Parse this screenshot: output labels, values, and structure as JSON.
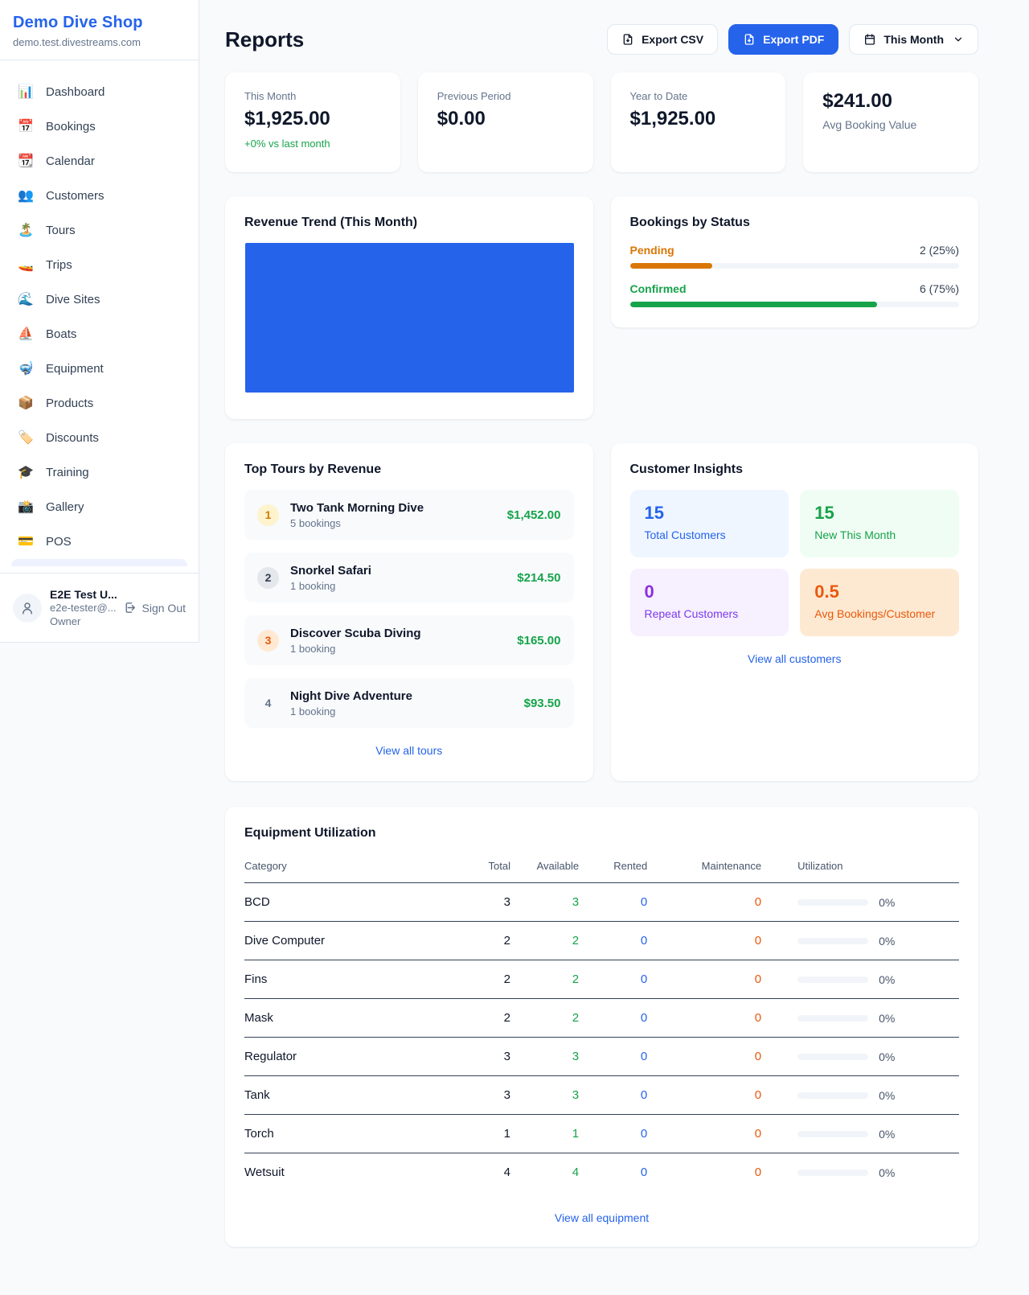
{
  "colors": {
    "brand": "#2563eb",
    "green": "#16a34a",
    "orange": "#d97706",
    "orange_deep": "#ea580c",
    "purple": "#9333ea",
    "page_bg": "#f8fafc"
  },
  "sidebar": {
    "shop_name": "Demo Dive Shop",
    "shop_domain": "demo.test.divestreams.com",
    "items": [
      {
        "icon": "📊",
        "label": "Dashboard"
      },
      {
        "icon": "📅",
        "label": "Bookings"
      },
      {
        "icon": "📆",
        "label": "Calendar"
      },
      {
        "icon": "👥",
        "label": "Customers"
      },
      {
        "icon": "🏝️",
        "label": "Tours"
      },
      {
        "icon": "🚤",
        "label": "Trips"
      },
      {
        "icon": "🌊",
        "label": "Dive Sites"
      },
      {
        "icon": "⛵",
        "label": "Boats"
      },
      {
        "icon": "🤿",
        "label": "Equipment"
      },
      {
        "icon": "📦",
        "label": "Products"
      },
      {
        "icon": "🏷️",
        "label": "Discounts"
      },
      {
        "icon": "🎓",
        "label": "Training"
      },
      {
        "icon": "📸",
        "label": "Gallery"
      },
      {
        "icon": "💳",
        "label": "POS"
      }
    ],
    "user": {
      "name": "E2E Test U...",
      "email": "e2e-tester@...",
      "role": "Owner",
      "sign_out_label": "Sign Out"
    }
  },
  "header": {
    "title": "Reports",
    "export_csv_label": "Export CSV",
    "export_pdf_label": "Export PDF",
    "period_label": "This Month"
  },
  "stats": [
    {
      "label": "This Month",
      "value": "$1,925.00",
      "delta": "+0% vs last month"
    },
    {
      "label": "Previous Period",
      "value": "$0.00"
    },
    {
      "label": "Year to Date",
      "value": "$1,925.00"
    },
    {
      "label": "Avg Booking Value",
      "value": "$241.00"
    }
  ],
  "revenue_trend": {
    "title": "Revenue Trend (This Month)"
  },
  "bookings_by_status": {
    "title": "Bookings by Status",
    "statuses": [
      {
        "label": "Pending",
        "count_text": "2 (25%)",
        "pct": 25
      },
      {
        "label": "Confirmed",
        "count_text": "6 (75%)",
        "pct": 75
      }
    ]
  },
  "top_tours": {
    "title": "Top Tours by Revenue",
    "link_label": "View all tours",
    "tours": [
      {
        "rank": "1",
        "name": "Two Tank Morning Dive",
        "bookings": "5 bookings",
        "revenue": "$1,452.00"
      },
      {
        "rank": "2",
        "name": "Snorkel Safari",
        "bookings": "1 booking",
        "revenue": "$214.50"
      },
      {
        "rank": "3",
        "name": "Discover Scuba Diving",
        "bookings": "1 booking",
        "revenue": "$165.00"
      },
      {
        "rank": "4",
        "name": "Night Dive Adventure",
        "bookings": "1 booking",
        "revenue": "$93.50"
      }
    ]
  },
  "customer_insights": {
    "title": "Customer Insights",
    "link_label": "View all customers",
    "tiles": [
      {
        "value": "15",
        "label": "Total Customers"
      },
      {
        "value": "15",
        "label": "New This Month"
      },
      {
        "value": "0",
        "label": "Repeat Customers"
      },
      {
        "value": "0.5",
        "label": "Avg Bookings/Customer"
      }
    ]
  },
  "equipment": {
    "title": "Equipment Utilization",
    "link_label": "View all equipment",
    "columns": [
      "Category",
      "Total",
      "Available",
      "Rented",
      "Maintenance",
      "Utilization"
    ],
    "rows": [
      {
        "category": "BCD",
        "total": "3",
        "available": "3",
        "rented": "0",
        "maintenance": "0",
        "utilization": "0%"
      },
      {
        "category": "Dive Computer",
        "total": "2",
        "available": "2",
        "rented": "0",
        "maintenance": "0",
        "utilization": "0%"
      },
      {
        "category": "Fins",
        "total": "2",
        "available": "2",
        "rented": "0",
        "maintenance": "0",
        "utilization": "0%"
      },
      {
        "category": "Mask",
        "total": "2",
        "available": "2",
        "rented": "0",
        "maintenance": "0",
        "utilization": "0%"
      },
      {
        "category": "Regulator",
        "total": "3",
        "available": "3",
        "rented": "0",
        "maintenance": "0",
        "utilization": "0%"
      },
      {
        "category": "Tank",
        "total": "3",
        "available": "3",
        "rented": "0",
        "maintenance": "0",
        "utilization": "0%"
      },
      {
        "category": "Torch",
        "total": "1",
        "available": "1",
        "rented": "0",
        "maintenance": "0",
        "utilization": "0%"
      },
      {
        "category": "Wetsuit",
        "total": "4",
        "available": "4",
        "rented": "0",
        "maintenance": "0",
        "utilization": "0%"
      }
    ]
  },
  "chart_data": [
    {
      "type": "area",
      "title": "Revenue Trend (This Month)",
      "note": "solid filled block covering full plot area; no axis labels or tick values visible",
      "series": [
        {
          "name": "Revenue",
          "values": [
            1925
          ]
        }
      ],
      "fill_color": "#2563eb"
    },
    {
      "type": "bar",
      "title": "Bookings by Status",
      "categories": [
        "Pending",
        "Confirmed"
      ],
      "values": [
        2,
        6
      ],
      "percent": [
        25,
        75
      ],
      "bar_colors": [
        "#d97706",
        "#16a34a"
      ],
      "orientation": "horizontal"
    }
  ]
}
